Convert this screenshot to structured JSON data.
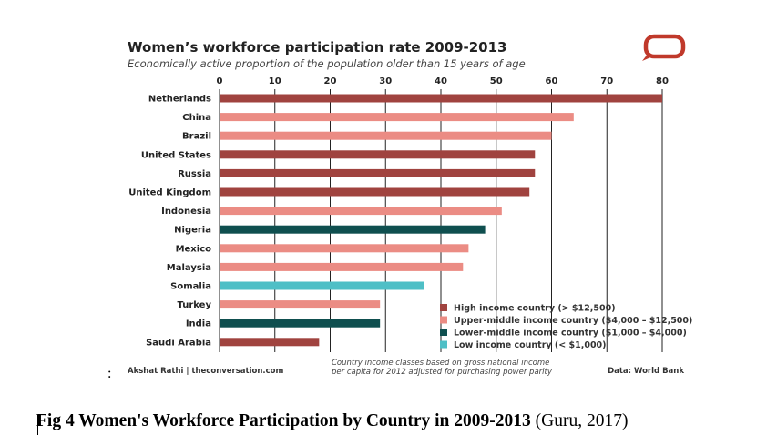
{
  "chart_data": {
    "type": "bar",
    "orientation": "horizontal",
    "title": "Women’s workforce participation rate 2009-2013",
    "subtitle": "Economically active proportion of the population older than 15 years of age",
    "xlim": [
      0,
      80
    ],
    "ticks": [
      0,
      10,
      20,
      30,
      40,
      50,
      60,
      70,
      80
    ],
    "grid": true,
    "categories": [
      "Netherlands",
      "China",
      "Brazil",
      "United States",
      "Russia",
      "United Kingdom",
      "Indonesia",
      "Nigeria",
      "Mexico",
      "Malaysia",
      "Somalia",
      "Turkey",
      "India",
      "Saudi Arabia"
    ],
    "values": [
      80,
      64,
      60,
      57,
      57,
      56,
      51,
      48,
      45,
      44,
      37,
      29,
      29,
      18
    ],
    "income_class": [
      "high",
      "upper",
      "upper",
      "high",
      "high",
      "high",
      "upper",
      "lower",
      "upper",
      "upper",
      "low",
      "upper",
      "lower",
      "high"
    ],
    "legend_position": "bottom-right",
    "legend": [
      {
        "key": "high",
        "label": "High income country (> $12,500)",
        "color": "#a0433f"
      },
      {
        "key": "upper",
        "label": "Upper-middle income country ($4,000 – $12,500)",
        "color": "#eb8c84"
      },
      {
        "key": "lower",
        "label": "Lower-middle income country ($1,000 – $4,000)",
        "color": "#0f4f4f"
      },
      {
        "key": "low",
        "label": "Low income country (< $1,000)",
        "color": "#4ebfc6"
      }
    ],
    "note_line1": "Country income classes based on gross national income",
    "note_line2": "per capita for 2012 adjusted for purchasing power parity",
    "author": "Akshat Rathi | theconversation.com",
    "source": "Data: World Bank"
  },
  "logo_color": "#c0392b",
  "caption": {
    "bold": "Fig 4 Women's Workforce Participation by Country in 2009-2013",
    "rest": " (Guru, 2017)"
  },
  "colon_text": ":"
}
